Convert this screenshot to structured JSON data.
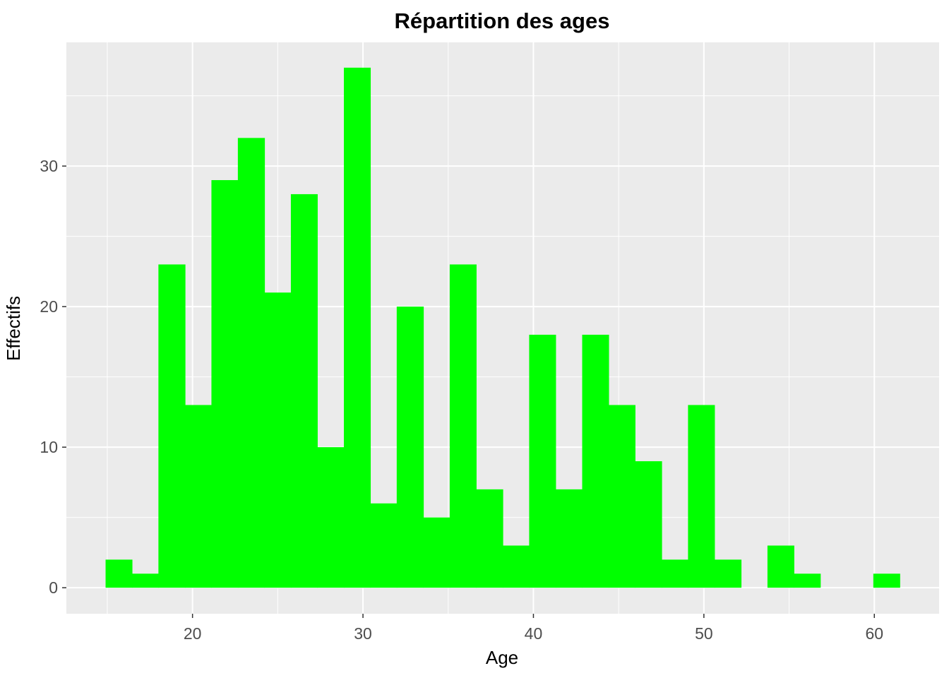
{
  "chart_data": {
    "type": "bar",
    "title": "Répartition des ages",
    "xlabel": "Age",
    "ylabel": "Effectifs",
    "bin_edges": [
      14.9,
      16.45,
      18.0,
      19.56,
      21.11,
      22.66,
      24.22,
      25.77,
      27.32,
      28.88,
      30.43,
      31.98,
      33.54,
      35.09,
      36.64,
      38.2,
      39.75,
      41.3,
      42.86,
      44.41,
      45.96,
      47.52,
      49.07,
      50.62,
      52.18,
      53.73,
      55.28,
      56.83,
      58.39,
      59.94,
      61.49
    ],
    "values": [
      2,
      1,
      23,
      13,
      29,
      32,
      21,
      28,
      10,
      37,
      6,
      20,
      5,
      23,
      7,
      3,
      18,
      7,
      18,
      13,
      9,
      2,
      13,
      2,
      0,
      3,
      1,
      0,
      0,
      1
    ],
    "xlim": [
      12.6,
      63.8
    ],
    "ylim": [
      -1.85,
      38.8
    ],
    "x_ticks": [
      20,
      30,
      40,
      50,
      60
    ],
    "y_ticks": [
      0,
      10,
      20,
      30
    ],
    "x_tick_labels": [
      "20",
      "30",
      "40",
      "50",
      "60"
    ],
    "y_tick_labels": [
      "0",
      "10",
      "20",
      "30"
    ],
    "grid": true,
    "bar_color": "#00FF00",
    "panel_background": "#EBEBEB",
    "grid_color": "#FFFFFF"
  }
}
